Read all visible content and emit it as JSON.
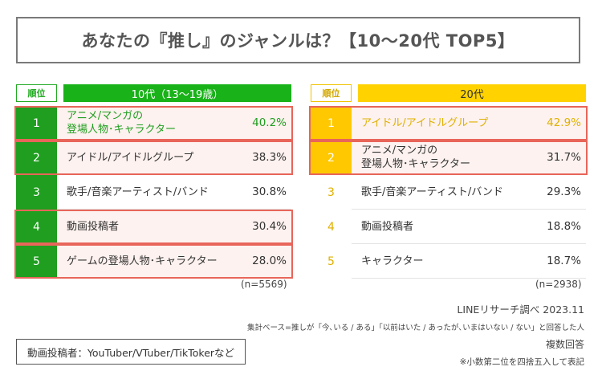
{
  "title": "あなたの『推し』のジャンルは？【10〜20代 TOP5】",
  "rank_header": "順位",
  "colors": {
    "green": "#19b219",
    "yellow": "#ffd200",
    "highlight": "#e8655a"
  },
  "chart_data": [
    {
      "type": "table",
      "title": "10代（13〜19歳）",
      "categories": [
        "アニメ/マンガの\n登場人物･キャラクター",
        "アイドル/アイドルグループ",
        "歌手/音楽アーティスト/バンド",
        "動画投稿者",
        "ゲームの登場人物･キャラクター"
      ],
      "ranks": [
        "1",
        "2",
        "3",
        "4",
        "5"
      ],
      "values": [
        40.2,
        38.3,
        30.8,
        30.4,
        28.0
      ],
      "value_labels": [
        "40.2%",
        "38.3%",
        "30.8%",
        "30.4%",
        "28.0%"
      ],
      "highlighted": [
        true,
        true,
        false,
        true,
        true
      ],
      "n": "(n=5569)"
    },
    {
      "type": "table",
      "title": "20代",
      "categories": [
        "アイドル/アイドルグループ",
        "アニメ/マンガの\n登場人物･キャラクター",
        "歌手/音楽アーティスト/バンド",
        "動画投稿者",
        "キャラクター"
      ],
      "ranks": [
        "1",
        "2",
        "3",
        "4",
        "5"
      ],
      "values": [
        42.9,
        31.7,
        29.3,
        18.8,
        18.7
      ],
      "value_labels": [
        "42.9%",
        "31.7%",
        "29.3%",
        "18.8%",
        "18.7%"
      ],
      "highlighted": [
        true,
        true,
        false,
        false,
        false
      ],
      "n": "(n=2938)"
    }
  ],
  "footer": {
    "source": "LINEリサーチ調べ 2023.11",
    "base": "集計ベース=推しが「今､いる / ある」「以前はいた / あったが､いまはいない / ない」と回答した人",
    "multi": "複数回答",
    "rounding": "※小数第二位を四捨五入して表記"
  },
  "note": "動画投稿者：YouTuber/VTuber/TikTokerなど"
}
